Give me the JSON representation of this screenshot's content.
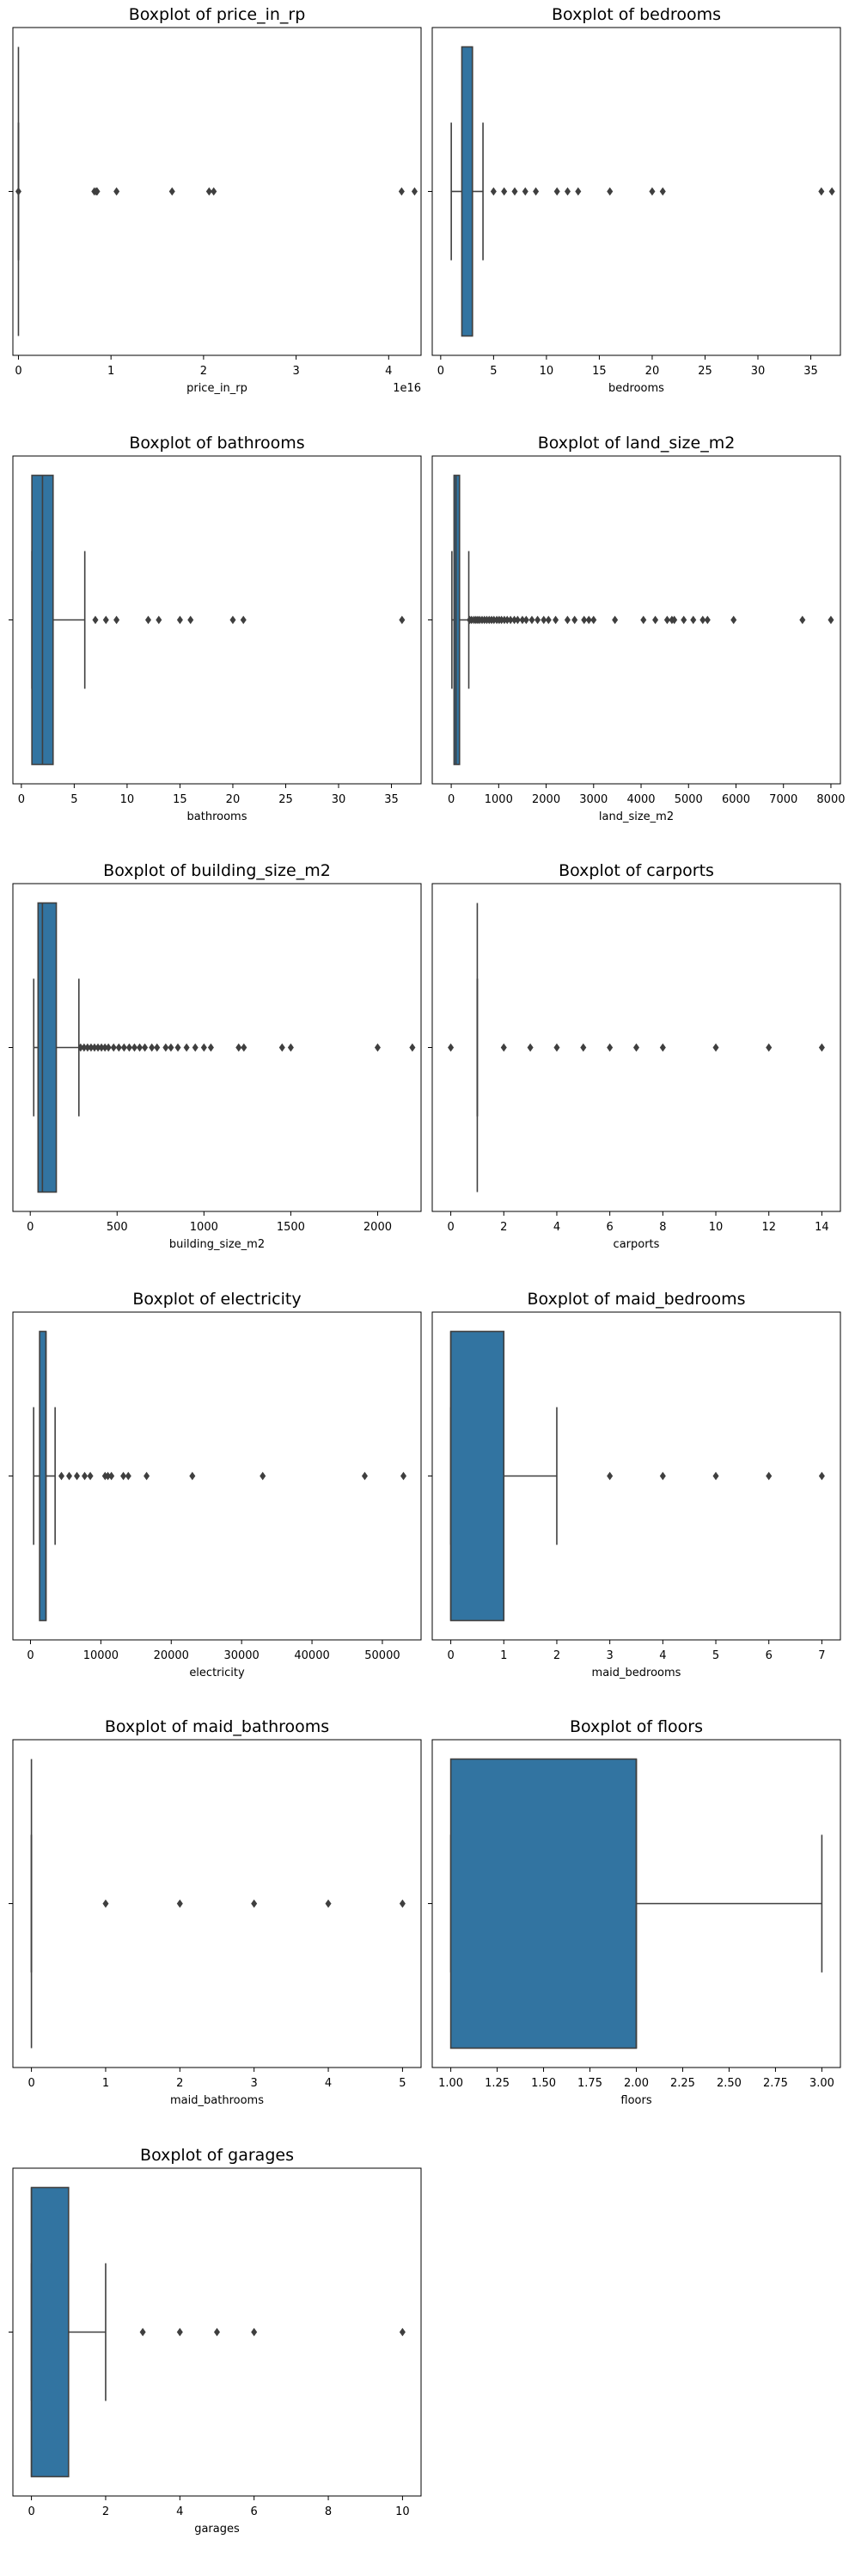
{
  "figure": {
    "background": "#ffffff",
    "box_color": "#3274a1",
    "line_color": "#3f3f3f"
  },
  "chart_data": [
    {
      "type": "boxplot",
      "title": "Boxplot of price_in_rp",
      "xlabel": "price_in_rp",
      "xlim": [
        -0.06,
        4.35
      ],
      "ticks": [
        0,
        1,
        2,
        3,
        4
      ],
      "tick_labels": [
        "0",
        "1",
        "2",
        "3",
        "4"
      ],
      "offset_text": "1e16",
      "stats": {
        "whislo": 0.0,
        "q1": 0.0,
        "med": 0.0,
        "q3": 0.0,
        "whishi": 0.0
      },
      "outliers": [
        0.0,
        0.82,
        0.84,
        0.85,
        1.06,
        1.66,
        2.06,
        2.11,
        4.14,
        4.28
      ]
    },
    {
      "type": "boxplot",
      "title": "Boxplot of bedrooms",
      "xlabel": "bedrooms",
      "xlim": [
        -0.8,
        37.8
      ],
      "ticks": [
        0,
        5,
        10,
        15,
        20,
        25,
        30,
        35
      ],
      "tick_labels": [
        "0",
        "5",
        "10",
        "15",
        "20",
        "25",
        "30",
        "35"
      ],
      "stats": {
        "whislo": 1,
        "q1": 2,
        "med": 3,
        "q3": 3,
        "whishi": 4
      },
      "outliers": [
        5,
        6,
        7,
        8,
        9,
        11,
        12,
        13,
        16,
        20,
        21,
        36,
        37
      ]
    },
    {
      "type": "boxplot",
      "title": "Boxplot of bathrooms",
      "xlabel": "bathrooms",
      "xlim": [
        -0.8,
        37.8
      ],
      "ticks": [
        0,
        5,
        10,
        15,
        20,
        25,
        30,
        35
      ],
      "tick_labels": [
        "0",
        "5",
        "10",
        "15",
        "20",
        "25",
        "30",
        "35"
      ],
      "stats": {
        "whislo": 1,
        "q1": 1,
        "med": 2,
        "q3": 3,
        "whishi": 6
      },
      "outliers": [
        7,
        8,
        9,
        12,
        13,
        15,
        16,
        20,
        21,
        36
      ]
    },
    {
      "type": "boxplot",
      "title": "Boxplot of land_size_m2",
      "xlabel": "land_size_m2",
      "xlim": [
        -400,
        8200
      ],
      "ticks": [
        0,
        1000,
        2000,
        3000,
        4000,
        5000,
        6000,
        7000,
        8000
      ],
      "tick_labels": [
        "0",
        "1000",
        "2000",
        "3000",
        "4000",
        "5000",
        "6000",
        "7000",
        "8000"
      ],
      "stats": {
        "whislo": 14,
        "q1": 60,
        "med": 100,
        "q3": 175,
        "whishi": 370
      },
      "outliers": [
        390,
        430,
        480,
        520,
        560,
        600,
        650,
        700,
        750,
        800,
        850,
        900,
        960,
        1010,
        1060,
        1120,
        1180,
        1250,
        1330,
        1400,
        1500,
        1580,
        1700,
        1820,
        1950,
        2050,
        2200,
        2450,
        2600,
        2800,
        2900,
        3000,
        3450,
        4050,
        4300,
        4550,
        4650,
        4700,
        4900,
        5100,
        5300,
        5400,
        5950,
        7400,
        8000
      ]
    },
    {
      "type": "boxplot",
      "title": "Boxplot of building_size_m2",
      "xlabel": "building_size_m2",
      "xlim": [
        -100,
        2250
      ],
      "ticks": [
        0,
        500,
        1000,
        1500,
        2000
      ],
      "tick_labels": [
        "0",
        "500",
        "1000",
        "1500",
        "2000"
      ],
      "stats": {
        "whislo": 20,
        "q1": 45,
        "med": 70,
        "q3": 150,
        "whishi": 280
      },
      "outliers": [
        290,
        310,
        330,
        350,
        370,
        390,
        410,
        430,
        450,
        480,
        510,
        540,
        570,
        600,
        630,
        660,
        700,
        730,
        780,
        810,
        850,
        900,
        950,
        1000,
        1040,
        1200,
        1230,
        1450,
        1500,
        2000,
        2200
      ]
    },
    {
      "type": "boxplot",
      "title": "Boxplot of carports",
      "xlabel": "carports",
      "xlim": [
        -0.7,
        14.7
      ],
      "ticks": [
        0,
        2,
        4,
        6,
        8,
        10,
        12,
        14
      ],
      "tick_labels": [
        "0",
        "2",
        "4",
        "6",
        "8",
        "10",
        "12",
        "14"
      ],
      "stats": {
        "whislo": 1,
        "q1": 1,
        "med": 1,
        "q3": 1,
        "whishi": 1
      },
      "outliers": [
        0,
        2,
        3,
        4,
        5,
        6,
        7,
        8,
        10,
        12,
        14
      ]
    },
    {
      "type": "boxplot",
      "title": "Boxplot of electricity",
      "xlabel": "electricity",
      "xlim": [
        -2500,
        55500
      ],
      "ticks": [
        0,
        10000,
        20000,
        30000,
        40000,
        50000
      ],
      "tick_labels": [
        "0",
        "10000",
        "20000",
        "30000",
        "40000",
        "50000"
      ],
      "stats": {
        "whislo": 450,
        "q1": 1300,
        "med": 2200,
        "q3": 2200,
        "whishi": 3500
      },
      "outliers": [
        4400,
        5500,
        6600,
        7700,
        8500,
        10600,
        11000,
        11500,
        13200,
        13900,
        16500,
        23000,
        33000,
        47500,
        53000
      ]
    },
    {
      "type": "boxplot",
      "title": "Boxplot of maid_bedrooms",
      "xlabel": "maid_bedrooms",
      "xlim": [
        -0.35,
        7.35
      ],
      "ticks": [
        0,
        1,
        2,
        3,
        4,
        5,
        6,
        7
      ],
      "tick_labels": [
        "0",
        "1",
        "2",
        "3",
        "4",
        "5",
        "6",
        "7"
      ],
      "stats": {
        "whislo": 0,
        "q1": 0,
        "med": 0,
        "q3": 1,
        "whishi": 2
      },
      "outliers": [
        3,
        4,
        5,
        6,
        7
      ]
    },
    {
      "type": "boxplot",
      "title": "Boxplot of maid_bathrooms",
      "xlabel": "maid_bathrooms",
      "xlim": [
        -0.25,
        5.25
      ],
      "ticks": [
        0,
        1,
        2,
        3,
        4,
        5
      ],
      "tick_labels": [
        "0",
        "1",
        "2",
        "3",
        "4",
        "5"
      ],
      "stats": {
        "whislo": 0,
        "q1": 0,
        "med": 0,
        "q3": 0,
        "whishi": 0
      },
      "outliers": [
        1,
        2,
        3,
        4,
        5
      ]
    },
    {
      "type": "boxplot",
      "title": "Boxplot of floors",
      "xlabel": "floors",
      "xlim": [
        0.9,
        3.1
      ],
      "ticks": [
        1.0,
        1.25,
        1.5,
        1.75,
        2.0,
        2.25,
        2.5,
        2.75,
        3.0
      ],
      "tick_labels": [
        "1.00",
        "1.25",
        "1.50",
        "1.75",
        "2.00",
        "2.25",
        "2.50",
        "2.75",
        "3.00"
      ],
      "stats": {
        "whislo": 1,
        "q1": 1,
        "med": 2,
        "q3": 2,
        "whishi": 3
      },
      "outliers": []
    },
    {
      "type": "boxplot",
      "title": "Boxplot of garages",
      "xlabel": "garages",
      "xlim": [
        -0.5,
        10.5
      ],
      "ticks": [
        0,
        2,
        4,
        6,
        8,
        10
      ],
      "tick_labels": [
        "0",
        "2",
        "4",
        "6",
        "8",
        "10"
      ],
      "stats": {
        "whislo": 0,
        "q1": 0,
        "med": 0,
        "q3": 1,
        "whishi": 2
      },
      "outliers": [
        3,
        4,
        5,
        6,
        10
      ]
    }
  ]
}
